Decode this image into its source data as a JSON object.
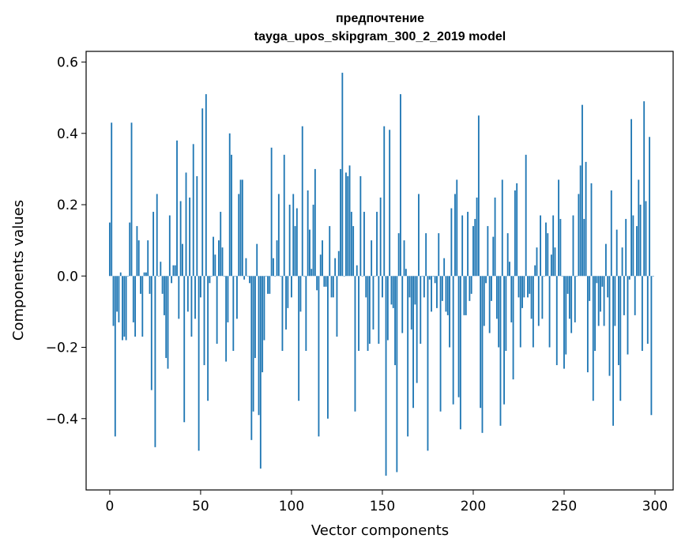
{
  "chart_data": {
    "type": "bar",
    "title": "предпочтение",
    "subtitle": "tayga_upos_skipgram_300_2_2019 model",
    "xlabel": "Vector components",
    "ylabel": "Components values",
    "xlim": [
      -13,
      310
    ],
    "ylim": [
      -0.6,
      0.63
    ],
    "xticks": [
      0,
      50,
      100,
      150,
      200,
      250,
      300
    ],
    "yticks": [
      -0.4,
      -0.2,
      0.0,
      0.2,
      0.4,
      0.6
    ],
    "xtick_labels": [
      "0",
      "50",
      "100",
      "150",
      "200",
      "250",
      "300"
    ],
    "ytick_labels": [
      "−0.4",
      "−0.2",
      "0.0",
      "0.2",
      "0.4",
      "0.6"
    ],
    "bar_color": "#1f77b4",
    "grid": false,
    "legend": "none",
    "values": [
      0.15,
      0.43,
      -0.14,
      -0.45,
      -0.1,
      -0.13,
      0.01,
      -0.18,
      -0.17,
      -0.18,
      0.0,
      0.15,
      0.43,
      -0.13,
      -0.17,
      0.14,
      0.1,
      -0.05,
      -0.17,
      0.01,
      0.01,
      0.1,
      -0.05,
      -0.32,
      0.18,
      -0.48,
      0.23,
      0.0,
      0.04,
      -0.05,
      -0.11,
      -0.23,
      -0.26,
      0.17,
      -0.02,
      0.03,
      0.03,
      0.38,
      -0.12,
      0.21,
      0.09,
      -0.41,
      0.29,
      -0.1,
      0.22,
      -0.17,
      0.37,
      -0.12,
      0.28,
      -0.49,
      -0.06,
      0.47,
      -0.25,
      0.51,
      -0.35,
      -0.02,
      0.0,
      0.11,
      0.06,
      -0.19,
      0.1,
      0.18,
      0.08,
      0.0,
      -0.24,
      -0.13,
      0.4,
      0.34,
      -0.21,
      0.0,
      -0.12,
      0.23,
      0.27,
      0.27,
      -0.01,
      0.05,
      0.0,
      -0.02,
      -0.46,
      -0.38,
      -0.23,
      0.09,
      -0.39,
      -0.54,
      -0.27,
      -0.18,
      0.0,
      -0.05,
      -0.05,
      0.36,
      0.05,
      0.0,
      0.1,
      0.23,
      0.0,
      -0.21,
      0.34,
      -0.15,
      -0.09,
      0.2,
      -0.06,
      0.23,
      0.14,
      0.19,
      -0.35,
      -0.1,
      0.42,
      0.0,
      -0.21,
      0.24,
      0.13,
      0.02,
      0.2,
      0.3,
      -0.04,
      -0.45,
      0.06,
      0.1,
      -0.03,
      -0.03,
      -0.4,
      0.14,
      -0.06,
      -0.06,
      0.05,
      -0.17,
      0.07,
      0.3,
      0.57,
      0.0,
      0.29,
      0.28,
      0.31,
      0.18,
      0.14,
      -0.38,
      0.03,
      -0.21,
      0.28,
      0.0,
      0.18,
      -0.06,
      -0.21,
      -0.19,
      0.1,
      -0.15,
      0.0,
      0.18,
      -0.19,
      0.22,
      -0.06,
      0.42,
      -0.56,
      -0.18,
      0.41,
      -0.08,
      -0.09,
      -0.25,
      -0.55,
      0.12,
      0.51,
      -0.16,
      0.1,
      0.02,
      -0.45,
      -0.06,
      -0.15,
      -0.37,
      -0.08,
      -0.3,
      0.23,
      -0.19,
      0.0,
      -0.06,
      0.12,
      -0.49,
      -0.01,
      -0.1,
      0.0,
      -0.02,
      -0.09,
      0.12,
      -0.38,
      -0.07,
      0.05,
      -0.1,
      -0.11,
      -0.2,
      0.19,
      -0.36,
      0.23,
      0.27,
      -0.34,
      -0.43,
      0.17,
      -0.11,
      -0.11,
      0.18,
      -0.07,
      -0.05,
      0.14,
      0.16,
      0.22,
      0.45,
      -0.37,
      -0.44,
      -0.14,
      -0.02,
      0.14,
      -0.16,
      -0.07,
      0.11,
      0.22,
      -0.12,
      -0.2,
      -0.42,
      0.27,
      -0.36,
      -0.21,
      0.12,
      0.04,
      -0.13,
      -0.29,
      0.24,
      0.26,
      -0.06,
      -0.2,
      -0.09,
      -0.06,
      0.34,
      -0.06,
      -0.05,
      -0.12,
      -0.2,
      0.03,
      0.08,
      -0.14,
      0.17,
      -0.12,
      0.0,
      0.15,
      0.12,
      -0.2,
      0.06,
      0.17,
      0.08,
      -0.25,
      0.27,
      0.16,
      0.0,
      -0.26,
      -0.22,
      -0.05,
      -0.12,
      -0.16,
      0.17,
      -0.13,
      0.0,
      0.23,
      0.31,
      0.48,
      0.16,
      0.32,
      -0.27,
      -0.07,
      0.26,
      -0.35,
      -0.21,
      -0.02,
      -0.14,
      -0.1,
      -0.03,
      -0.14,
      0.09,
      -0.06,
      -0.28,
      0.24,
      -0.42,
      -0.14,
      0.13,
      -0.25,
      -0.35,
      0.08,
      -0.11,
      0.16,
      -0.22,
      -0.01,
      0.44,
      0.17,
      -0.11,
      0.14,
      0.27,
      0.2,
      -0.21,
      0.49,
      0.21,
      -0.19,
      0.39,
      -0.39,
      0.0
    ]
  }
}
